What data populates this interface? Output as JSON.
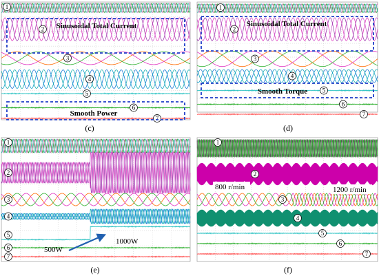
{
  "chart_data": [
    {
      "type": "line",
      "panel": "(c)",
      "traces": [
        {
          "label": "1",
          "kind": "sine3",
          "colors": [
            "#2e9b2e",
            "#c46aa8",
            "#3dbbb4"
          ],
          "cycles": 38,
          "amp": 0.45
        },
        {
          "label": "2",
          "kind": "sine3",
          "colors": [
            "#e040c0",
            "#d060d0",
            "#a040b0"
          ],
          "cycles": 13,
          "amp": 0.45
        },
        {
          "label": "3",
          "kind": "sine3",
          "colors": [
            "#ff6a00",
            "#e030c0",
            "#2db02d"
          ],
          "cycles": 3,
          "amp": 0.45
        },
        {
          "label": "4",
          "kind": "sine3",
          "colors": [
            "#1a7ad8",
            "#1ab0b0",
            "#10a0c8"
          ],
          "cycles": 13,
          "amp": 0.45
        },
        {
          "label": "5",
          "kind": "flat",
          "colors": [
            "#32c4c4"
          ],
          "cycles": 0,
          "amp": 0.02
        },
        {
          "label": "6",
          "kind": "flat",
          "colors": [
            "#30b030"
          ],
          "cycles": 0,
          "amp": 0.02
        },
        {
          "label": "7",
          "kind": "flat",
          "colors": [
            "#ff5050"
          ],
          "cycles": 0,
          "amp": 0.02
        }
      ],
      "annotations": [
        "Sinusoidal Total Current",
        "Smooth Power"
      ]
    },
    {
      "type": "line",
      "panel": "(d)",
      "traces": [
        {
          "label": "1",
          "kind": "sine3",
          "colors": [
            "#2e9b2e",
            "#c46aa8",
            "#3dbbb4"
          ],
          "cycles": 38,
          "amp": 0.45
        },
        {
          "label": "2",
          "kind": "sine3",
          "colors": [
            "#e040c0",
            "#d060d0",
            "#a040b0"
          ],
          "cycles": 13,
          "amp": 0.45
        },
        {
          "label": "3",
          "kind": "sine3",
          "colors": [
            "#ff6a00",
            "#e030c0",
            "#2db02d"
          ],
          "cycles": 3,
          "amp": 0.45
        },
        {
          "label": "4",
          "kind": "sine3",
          "colors": [
            "#1a7ad8",
            "#1ab0b0",
            "#10a0c8"
          ],
          "cycles": 13,
          "amp": 0.45
        },
        {
          "label": "5",
          "kind": "flat",
          "colors": [
            "#32c4c4"
          ],
          "cycles": 0,
          "amp": 0.02
        },
        {
          "label": "6",
          "kind": "flat",
          "colors": [
            "#30b030"
          ],
          "cycles": 0,
          "amp": 0.02
        },
        {
          "label": "7",
          "kind": "flat",
          "colors": [
            "#ff5050"
          ],
          "cycles": 0,
          "amp": 0.02
        }
      ],
      "annotations": [
        "Sinusoidal Total Current",
        "Smooth Torque"
      ]
    },
    {
      "type": "line",
      "panel": "(e)",
      "step_fraction": 0.47,
      "traces": [
        {
          "label": "1",
          "kind": "sine3",
          "colors": [
            "#2e9b2e",
            "#c46aa8",
            "#3dbbb4"
          ],
          "cycles": 40,
          "amp": 0.45
        },
        {
          "label": "2",
          "kind": "sine3",
          "colors": [
            "#e040c0",
            "#d060d0",
            "#a040b0"
          ],
          "cycles": 40,
          "amp": 0.3,
          "amp_after": 0.6
        },
        {
          "label": "3",
          "kind": "sine3",
          "colors": [
            "#ff6a00",
            "#e030c0",
            "#2db02d"
          ],
          "cycles": 7,
          "amp": 0.45
        },
        {
          "label": "4",
          "kind": "sine3",
          "colors": [
            "#1a7ad8",
            "#1ab0b0",
            "#10a0c8"
          ],
          "cycles": 40,
          "amp": 0.2,
          "amp_after": 0.5
        },
        {
          "label": "5",
          "kind": "step",
          "colors": [
            "#32c4c4"
          ],
          "cycles": 0,
          "amp": 0.02
        },
        {
          "label": "6",
          "kind": "flat",
          "colors": [
            "#30b030"
          ],
          "cycles": 0,
          "amp": 0.02
        },
        {
          "label": "7",
          "kind": "flat",
          "colors": [
            "#ff5050"
          ],
          "cycles": 0,
          "amp": 0.02
        }
      ],
      "annotations": [
        "500W",
        "1000W"
      ]
    },
    {
      "type": "line",
      "panel": "(f)",
      "step_fraction": 0.52,
      "traces": [
        {
          "label": "1",
          "kind": "sine3",
          "colors": [
            "#8a8a8a",
            "#555555",
            "#2db02d"
          ],
          "cycles": 70,
          "amp": 0.45
        },
        {
          "label": "2",
          "kind": "band",
          "colors": [
            "#cc00aa"
          ],
          "cycles": 0,
          "amp": 0.5
        },
        {
          "label": "3",
          "kind": "sine3",
          "colors": [
            "#ff6a00",
            "#e030c0",
            "#2db02d"
          ],
          "cycles": 9,
          "amp": 0.45,
          "freq_after": 2.2
        },
        {
          "label": "4",
          "kind": "band",
          "colors": [
            "#109070"
          ],
          "cycles": 0,
          "amp": 0.5
        },
        {
          "label": "5",
          "kind": "flat",
          "colors": [
            "#32c4c4"
          ],
          "cycles": 0,
          "amp": 0.02
        },
        {
          "label": "6",
          "kind": "flat",
          "colors": [
            "#30b030"
          ],
          "cycles": 0,
          "amp": 0.02
        },
        {
          "label": "7",
          "kind": "flat",
          "colors": [
            "#ff5050"
          ],
          "cycles": 0,
          "amp": 0.02
        }
      ],
      "annotations": [
        "800 r/min",
        "1200 r/min"
      ]
    }
  ],
  "captions": [
    "(c)",
    "(d)",
    "(e)",
    "(f)"
  ],
  "colors": {
    "grid": "#c8c8c8",
    "frame": "#888888",
    "dashed_box": "#1e3cc8",
    "arrow": "#2060b0"
  }
}
